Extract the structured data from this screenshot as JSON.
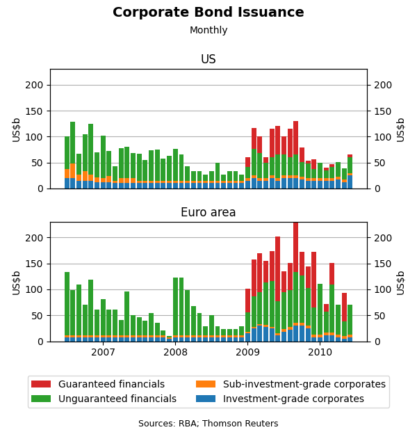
{
  "title": "Corporate Bond Issuance",
  "subtitle": "Monthly",
  "source": "Sources: RBA; Thomson Reuters",
  "legend": "lower center",
  "chart_data": [
    {
      "type": "bar",
      "stacked": true,
      "grid": true,
      "tick_labels": "y",
      "title": "US",
      "y_label": "US$b",
      "y2_label": "US$b",
      "categories": [
        null,
        null,
        null,
        null,
        null,
        null,
        "2007",
        null,
        null,
        null,
        null,
        null,
        null,
        null,
        null,
        null,
        null,
        null,
        "2008",
        null,
        null,
        null,
        null,
        null,
        null,
        null,
        null,
        null,
        null,
        null,
        "2009",
        null,
        null,
        null,
        null,
        null,
        null,
        null,
        null,
        null,
        null,
        null,
        "2010",
        null,
        null,
        null,
        null,
        null
      ],
      "ylim": [
        0,
        230
      ],
      "yticks": [
        0,
        50,
        100,
        150,
        200
      ],
      "y2lim": [
        0,
        230
      ],
      "y2ticks": [
        0,
        50,
        100,
        150,
        200
      ],
      "series": [
        {
          "name": "Investment-grade corporates",
          "values": [
            20,
            20,
            15,
            15,
            15,
            12,
            12,
            12,
            10,
            10,
            10,
            10,
            10,
            10,
            10,
            10,
            10,
            10,
            10,
            10,
            10,
            10,
            10,
            10,
            10,
            10,
            10,
            10,
            10,
            10,
            15,
            20,
            15,
            15,
            20,
            15,
            20,
            20,
            20,
            18,
            15,
            15,
            15,
            15,
            15,
            18,
            12,
            25
          ]
        },
        {
          "name": "Sub-investment-grade corporates",
          "values": [
            18,
            28,
            12,
            18,
            12,
            10,
            8,
            12,
            5,
            10,
            10,
            10,
            5,
            5,
            5,
            5,
            5,
            5,
            5,
            5,
            5,
            5,
            5,
            5,
            5,
            5,
            5,
            5,
            5,
            5,
            5,
            5,
            5,
            5,
            5,
            5,
            5,
            5,
            5,
            5,
            5,
            5,
            5,
            5,
            5,
            5,
            5,
            5
          ]
        },
        {
          "name": "Unguaranteed financials",
          "values": [
            62,
            80,
            40,
            72,
            98,
            48,
            82,
            48,
            28,
            58,
            60,
            48,
            52,
            40,
            58,
            60,
            42,
            48,
            62,
            50,
            28,
            18,
            18,
            12,
            18,
            35,
            12,
            18,
            18,
            12,
            22,
            52,
            48,
            30,
            35,
            45,
            40,
            35,
            40,
            28,
            28,
            18,
            30,
            15,
            22,
            28,
            22,
            30
          ]
        },
        {
          "name": "Guaranteed financials",
          "values": [
            0,
            0,
            0,
            0,
            0,
            0,
            0,
            0,
            0,
            0,
            0,
            0,
            0,
            0,
            0,
            0,
            0,
            0,
            0,
            0,
            0,
            0,
            0,
            0,
            0,
            0,
            0,
            0,
            0,
            0,
            18,
            40,
            32,
            10,
            55,
            55,
            35,
            55,
            65,
            28,
            5,
            18,
            0,
            5,
            5,
            0,
            0,
            5
          ]
        }
      ]
    },
    {
      "type": "bar",
      "stacked": true,
      "grid": true,
      "title": "Euro area",
      "y_label": "US$b",
      "y2_label": "US$b",
      "categories": [
        null,
        null,
        null,
        null,
        null,
        null,
        "2007",
        null,
        null,
        null,
        null,
        null,
        null,
        null,
        null,
        null,
        null,
        null,
        "2008",
        null,
        null,
        null,
        null,
        null,
        null,
        null,
        null,
        null,
        null,
        null,
        "2009",
        null,
        null,
        null,
        null,
        null,
        null,
        null,
        null,
        null,
        null,
        null,
        "2010",
        null,
        null,
        null,
        null,
        null
      ],
      "ylim": [
        0,
        230
      ],
      "yticks": [
        0,
        50,
        100,
        150,
        200
      ],
      "y2lim": [
        0,
        230
      ],
      "y2ticks": [
        0,
        50,
        100,
        150,
        200
      ],
      "series": [
        {
          "name": "Investment-grade corporates",
          "values": [
            8,
            8,
            8,
            8,
            8,
            8,
            8,
            8,
            8,
            8,
            8,
            8,
            8,
            8,
            8,
            8,
            8,
            5,
            8,
            8,
            8,
            8,
            8,
            8,
            8,
            8,
            8,
            8,
            8,
            8,
            15,
            25,
            30,
            28,
            25,
            12,
            18,
            22,
            30,
            30,
            25,
            8,
            8,
            12,
            12,
            8,
            5,
            8
          ]
        },
        {
          "name": "Sub-investment-grade corporates",
          "values": [
            3,
            3,
            3,
            3,
            3,
            3,
            3,
            3,
            3,
            3,
            3,
            3,
            3,
            3,
            3,
            3,
            3,
            3,
            3,
            3,
            3,
            3,
            3,
            3,
            3,
            3,
            3,
            3,
            3,
            3,
            3,
            3,
            3,
            3,
            3,
            3,
            5,
            5,
            5,
            5,
            5,
            5,
            5,
            5,
            5,
            5,
            5,
            5
          ]
        },
        {
          "name": "Unguaranteed financials",
          "values": [
            122,
            88,
            98,
            60,
            108,
            50,
            70,
            50,
            50,
            30,
            85,
            40,
            35,
            28,
            44,
            24,
            10,
            2,
            112,
            112,
            88,
            57,
            44,
            18,
            40,
            18,
            12,
            12,
            12,
            18,
            38,
            58,
            62,
            82,
            88,
            62,
            72,
            72,
            98,
            92,
            72,
            52,
            98,
            40,
            92,
            58,
            28,
            58
          ]
        },
        {
          "name": "Guaranteed financials",
          "values": [
            0,
            0,
            0,
            0,
            0,
            0,
            0,
            0,
            0,
            0,
            0,
            0,
            0,
            0,
            0,
            0,
            0,
            0,
            0,
            0,
            0,
            0,
            0,
            0,
            0,
            0,
            0,
            0,
            0,
            0,
            45,
            72,
            75,
            42,
            58,
            125,
            40,
            52,
            95,
            45,
            42,
            108,
            0,
            15,
            42,
            0,
            55,
            0
          ]
        }
      ]
    }
  ]
}
